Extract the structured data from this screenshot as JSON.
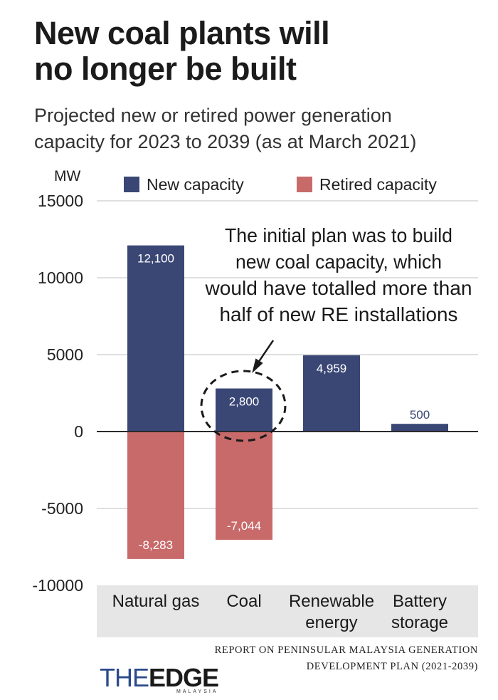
{
  "header": {
    "title_line1": "New coal plants will",
    "title_line2": "no longer be built",
    "subtitle_line1": "Projected new or retired power generation",
    "subtitle_line2": "capacity for 2023 to 2039 (as at March 2021)"
  },
  "colors": {
    "new": "#3a4775",
    "retired": "#c96a6a",
    "band": "#e6e6e6",
    "grid": "#cccccc",
    "zero": "#2a2a2a"
  },
  "chart_data": {
    "type": "bar",
    "stacked": "diverging",
    "unit": "MW",
    "title": "New coal plants will no longer be built",
    "ylim": [
      -10000,
      15000
    ],
    "yticks": [
      15000,
      10000,
      5000,
      0,
      -5000,
      -10000
    ],
    "ytick_labels": [
      "15000",
      "10000",
      "5000",
      "0",
      "-5000",
      "-10000"
    ],
    "legend": [
      "New capacity",
      "Retired capacity"
    ],
    "categories": [
      {
        "lines": [
          "Natural gas"
        ]
      },
      {
        "lines": [
          "Coal"
        ]
      },
      {
        "lines": [
          "Renewable",
          "energy"
        ]
      },
      {
        "lines": [
          "Battery",
          "storage"
        ]
      }
    ],
    "series": [
      {
        "name": "New capacity",
        "values": [
          12100,
          2800,
          4959,
          500
        ],
        "labels": [
          "12,100",
          "2,800",
          "4,959",
          "500"
        ]
      },
      {
        "name": "Retired capacity",
        "values": [
          -8283,
          -7044,
          null,
          null
        ],
        "labels": [
          "-8,283",
          "-7,044",
          null,
          null
        ]
      }
    ],
    "annotation": {
      "lines": [
        "The initial plan was to build",
        "new coal capacity, which",
        "would have totalled more than",
        "half of new RE installations"
      ],
      "target": "Coal"
    }
  },
  "source": {
    "line1": "REPORT ON PENINSULAR MALAYSIA GENERATION",
    "line2": "DEVELOPMENT PLAN (2021-2039)"
  },
  "logo": {
    "the": "THE",
    "edge": "EDGE",
    "sub": "MALAYSIA"
  }
}
